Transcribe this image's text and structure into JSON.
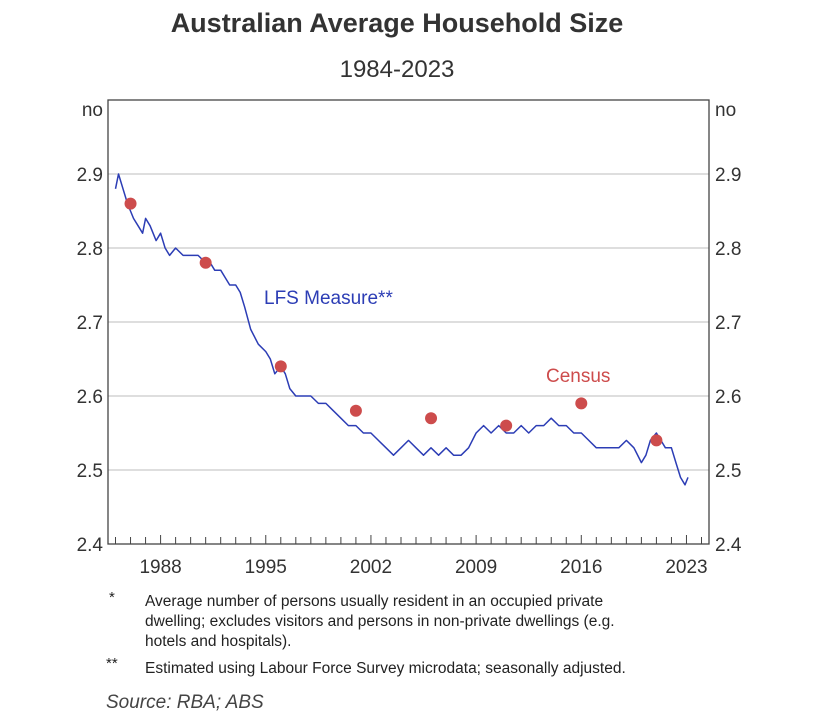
{
  "title": "Australian Average Household Size",
  "subtitle": "1984-2023",
  "chart_data": {
    "type": "line",
    "title": "Australian Average Household Size",
    "subtitle": "1984-2023",
    "ylabel_left": "no",
    "ylabel_right": "no",
    "ylim": [
      2.4,
      3.0
    ],
    "xlim": [
      1984.5,
      2024.5
    ],
    "yticks": [
      2.4,
      2.5,
      2.6,
      2.7,
      2.8,
      2.9
    ],
    "ytick_labels": [
      "2.4",
      "2.5",
      "2.6",
      "2.7",
      "2.8",
      "2.9"
    ],
    "xticks": [
      1988,
      1995,
      2002,
      2009,
      2016,
      2023
    ],
    "xtick_labels": [
      "1988",
      "1995",
      "2002",
      "2009",
      "2016",
      "2023"
    ],
    "grid": true,
    "series": [
      {
        "name": "LFS Measure**",
        "type": "line",
        "color": "#2c3db5",
        "x": [
          1985.0,
          1985.2,
          1985.5,
          1985.8,
          1986.2,
          1986.5,
          1986.8,
          1987.0,
          1987.3,
          1987.5,
          1987.7,
          1988.0,
          1988.3,
          1988.6,
          1989.0,
          1989.5,
          1990.0,
          1990.5,
          1991.0,
          1991.3,
          1991.6,
          1992.0,
          1992.3,
          1992.6,
          1993.0,
          1993.3,
          1993.6,
          1994.0,
          1994.5,
          1995.0,
          1995.3,
          1995.6,
          1996.0,
          1996.3,
          1996.6,
          1997.0,
          1997.5,
          1998.0,
          1998.5,
          1999.0,
          1999.5,
          2000.0,
          2000.5,
          2001.0,
          2001.5,
          2002.0,
          2002.5,
          2003.0,
          2003.5,
          2004.0,
          2004.5,
          2005.0,
          2005.5,
          2006.0,
          2006.5,
          2007.0,
          2007.5,
          2008.0,
          2008.5,
          2009.0,
          2009.5,
          2010.0,
          2010.5,
          2011.0,
          2011.5,
          2012.0,
          2012.5,
          2013.0,
          2013.5,
          2014.0,
          2014.5,
          2015.0,
          2015.5,
          2016.0,
          2016.5,
          2017.0,
          2017.5,
          2018.0,
          2018.5,
          2019.0,
          2019.5,
          2020.0,
          2020.3,
          2020.6,
          2021.0,
          2021.3,
          2021.6,
          2022.0,
          2022.3,
          2022.6,
          2022.9,
          2023.1
        ],
        "values": [
          2.88,
          2.9,
          2.88,
          2.86,
          2.84,
          2.83,
          2.82,
          2.84,
          2.83,
          2.82,
          2.81,
          2.82,
          2.8,
          2.79,
          2.8,
          2.79,
          2.79,
          2.79,
          2.78,
          2.78,
          2.77,
          2.77,
          2.76,
          2.75,
          2.75,
          2.74,
          2.72,
          2.69,
          2.67,
          2.66,
          2.65,
          2.63,
          2.64,
          2.63,
          2.61,
          2.6,
          2.6,
          2.6,
          2.59,
          2.59,
          2.58,
          2.57,
          2.56,
          2.56,
          2.55,
          2.55,
          2.54,
          2.53,
          2.52,
          2.53,
          2.54,
          2.53,
          2.52,
          2.53,
          2.52,
          2.53,
          2.52,
          2.52,
          2.53,
          2.55,
          2.56,
          2.55,
          2.56,
          2.55,
          2.55,
          2.56,
          2.55,
          2.56,
          2.56,
          2.57,
          2.56,
          2.56,
          2.55,
          2.55,
          2.54,
          2.53,
          2.53,
          2.53,
          2.53,
          2.54,
          2.53,
          2.51,
          2.52,
          2.54,
          2.55,
          2.54,
          2.53,
          2.53,
          2.51,
          2.49,
          2.48,
          2.49
        ]
      },
      {
        "name": "Census",
        "type": "scatter",
        "color": "#cd4c4c",
        "x": [
          1986,
          1991,
          1996,
          2001,
          2006,
          2011,
          2016,
          2021
        ],
        "values": [
          2.86,
          2.78,
          2.64,
          2.58,
          2.57,
          2.56,
          2.59,
          2.54
        ]
      }
    ],
    "annotations": [
      {
        "text": "LFS Measure**",
        "series": "LFS Measure**"
      },
      {
        "text": "Census",
        "series": "Census"
      }
    ]
  },
  "footnotes": [
    {
      "marker": "*",
      "lines": [
        "Average number of persons usually resident in an occupied private",
        "dwelling; excludes visitors and persons in non-private dwellings (e.g.",
        "hotels and hospitals)."
      ]
    },
    {
      "marker": "**",
      "lines": [
        "Estimated using Labour Force Survey microdata; seasonally adjusted."
      ]
    }
  ],
  "source": "Source: RBA; ABS"
}
